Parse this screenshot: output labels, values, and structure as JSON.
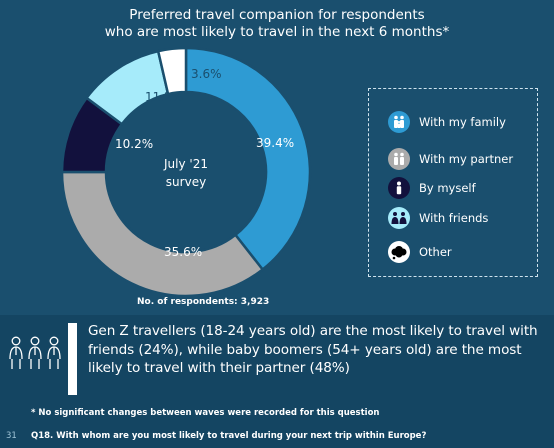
{
  "title_line1": "Preferred travel companion for respondents",
  "title_line2": "who are most likely to travel in the next 6 months*",
  "chart_data": {
    "type": "pie",
    "style": "donut",
    "center_line1": "July '21",
    "center_line2": "survey",
    "slices": [
      {
        "name": "With my family",
        "value": 39.4,
        "label": "39.4%",
        "color": "#2e9bd3",
        "text_color": "#ffffff"
      },
      {
        "name": "With my partner",
        "value": 35.6,
        "label": "35.6%",
        "color": "#ababab",
        "text_color": "#ffffff"
      },
      {
        "name": "By myself",
        "value": 10.2,
        "label": "10.2%",
        "color": "#12113d",
        "text_color": "#ffffff"
      },
      {
        "name": "With friends",
        "value": 11.2,
        "label": "11.2%",
        "color": "#a6ebfa",
        "text_color": "#1a4f6e"
      },
      {
        "name": "Other",
        "value": 3.6,
        "label": "3.6%",
        "color": "#ffffff",
        "text_color": "#1a4f6e"
      }
    ]
  },
  "legend": [
    {
      "label": "With my family",
      "icon": "family-icon",
      "color": "#2e9bd3"
    },
    {
      "label": "With my partner",
      "icon": "couple-icon",
      "color": "#ababab"
    },
    {
      "label": "By myself",
      "icon": "person-icon",
      "color": "#12113d"
    },
    {
      "label": "With friends",
      "icon": "friends-icon",
      "color": "#a6ebfa"
    },
    {
      "label": "Other",
      "icon": "speech-cloud-icon",
      "color": "#ffffff"
    }
  ],
  "respondents": "No. of respondents: 3,923",
  "finding_icon": "group-of-people-icon",
  "finding": "Gen Z travellers (18-24 years old) are the most likely to travel with friends (24%), while baby boomers (54+ years old) are the most likely to travel with their partner (48%)",
  "footnote": "* No significant changes between waves were recorded for this question",
  "page_number": "31",
  "question": "Q18. With whom are you most likely to travel during your next trip within Europe?"
}
